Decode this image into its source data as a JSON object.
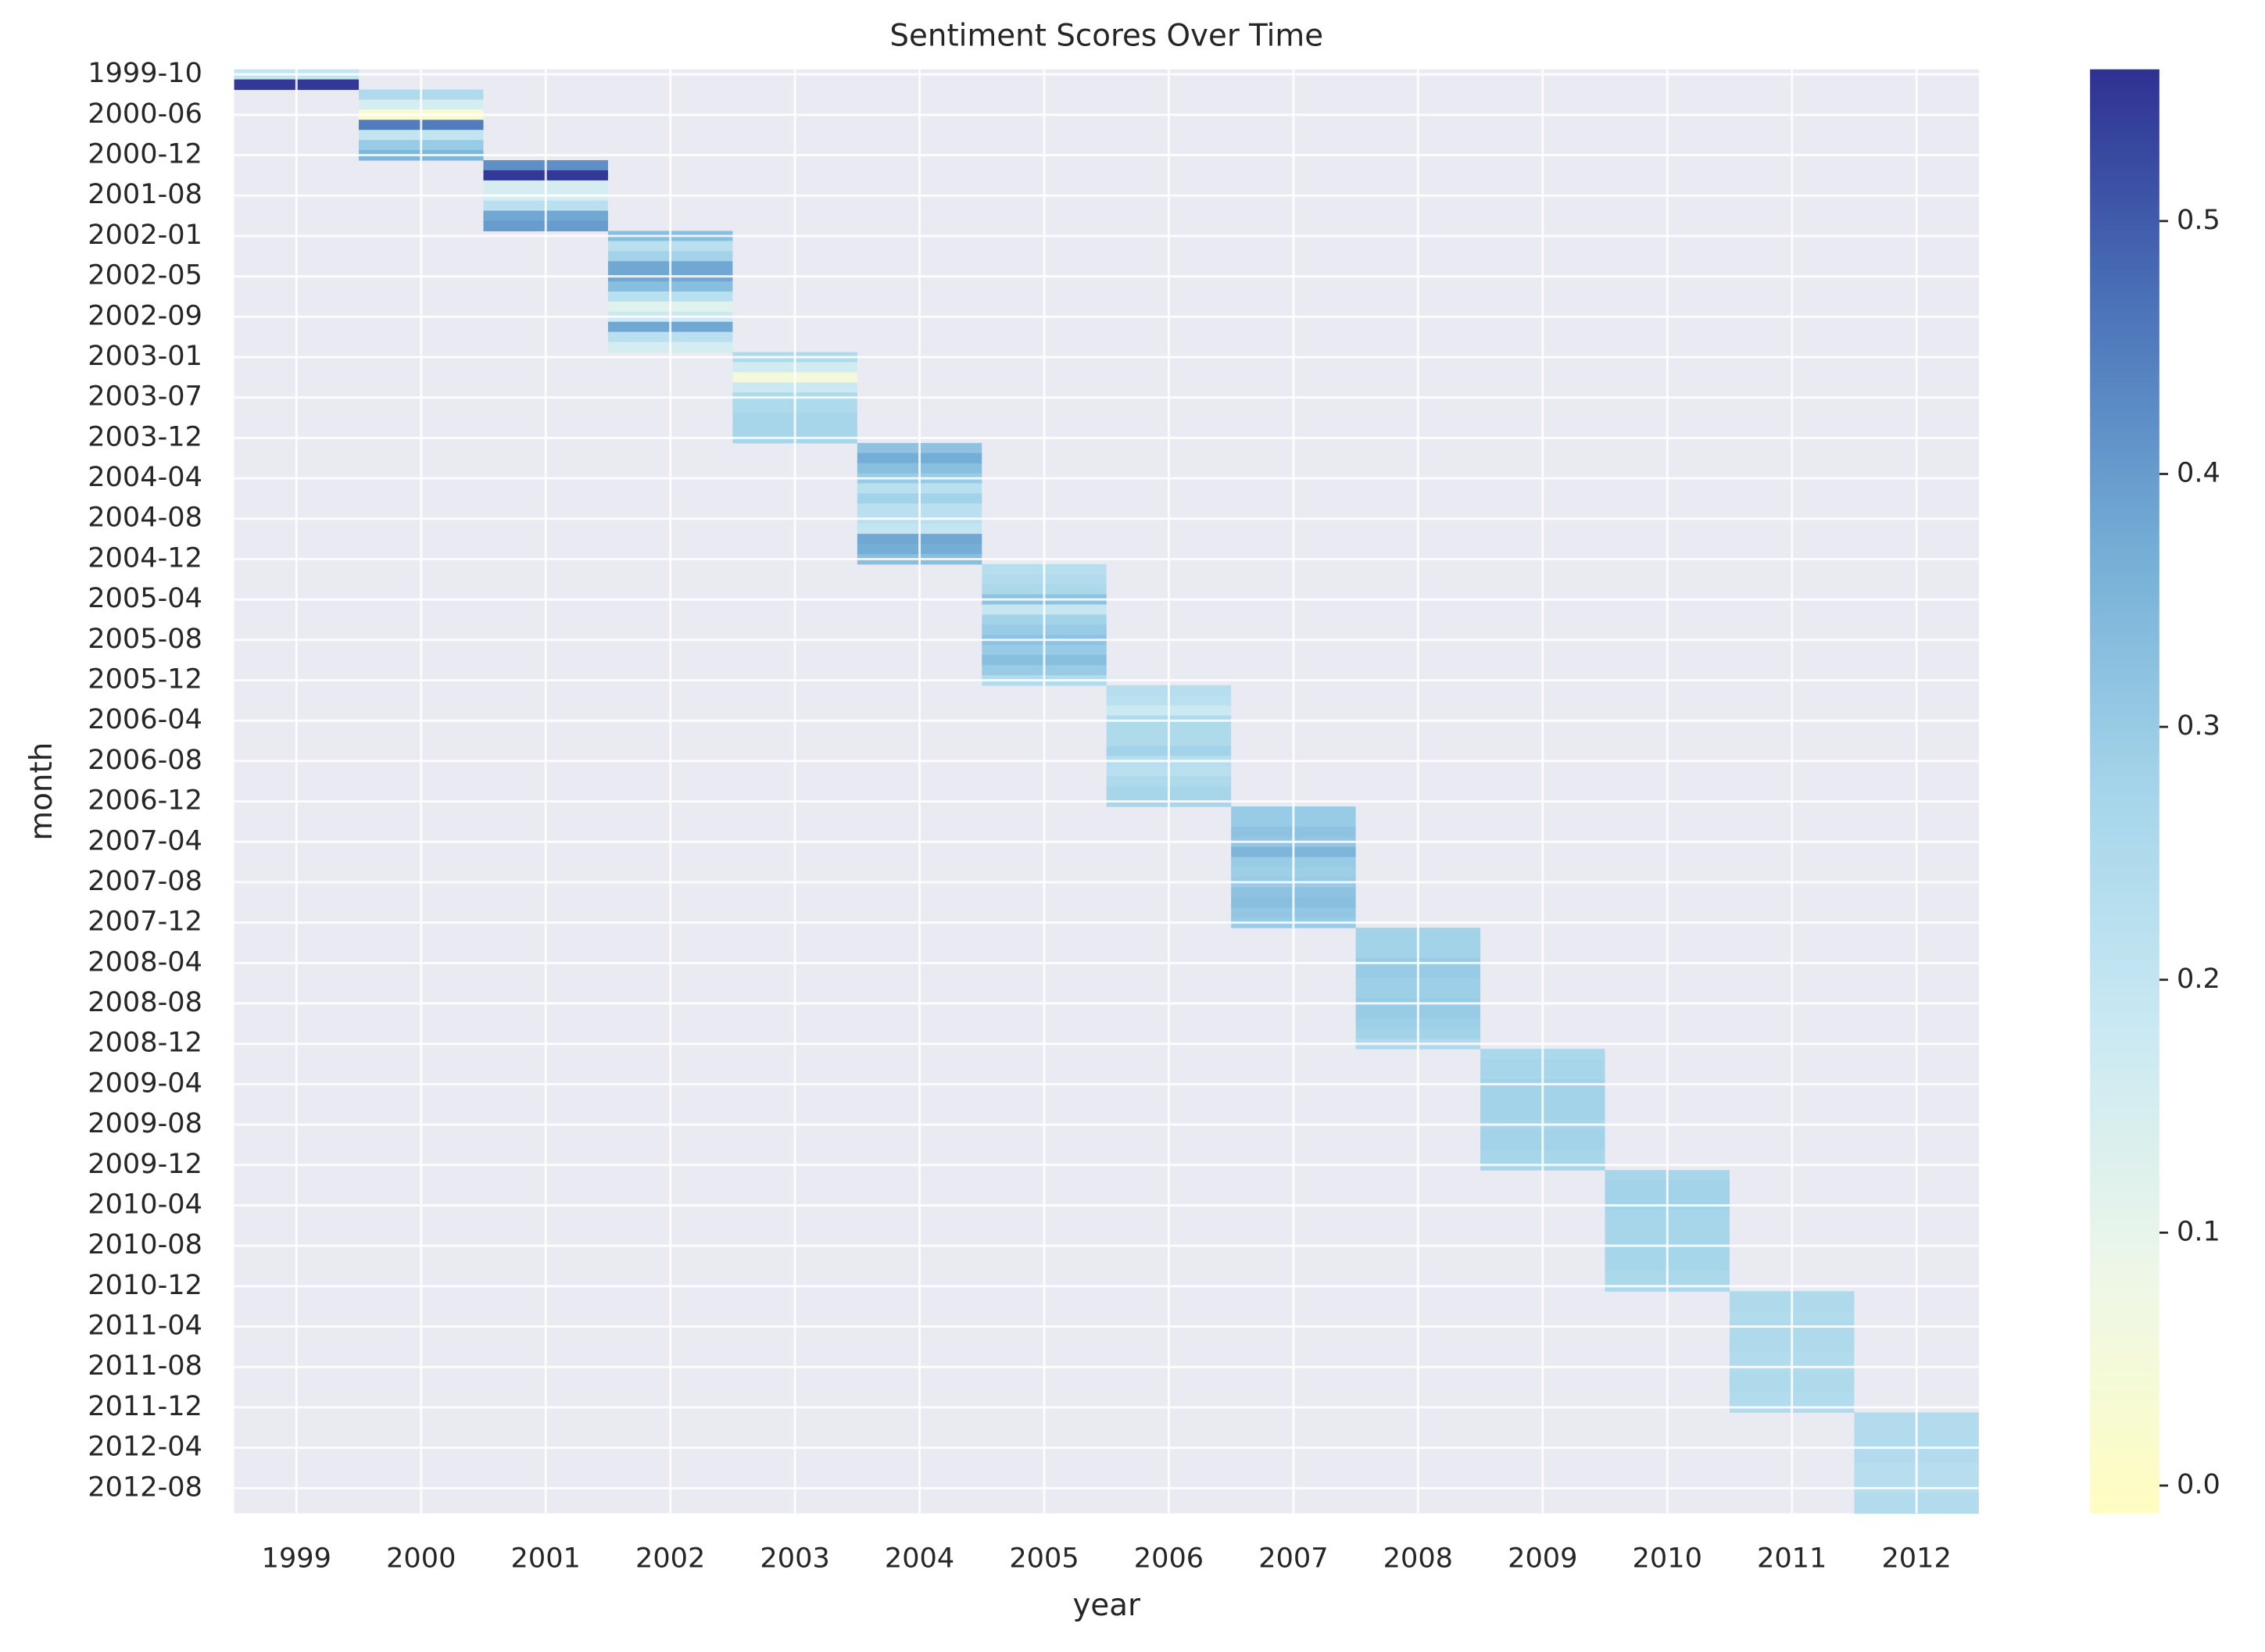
{
  "chart_data": {
    "type": "heatmap",
    "title": "Sentiment Scores Over Time",
    "x_label": "year",
    "y_label": "month",
    "x": [
      "1999",
      "2000",
      "2001",
      "2002",
      "2003",
      "2004",
      "2005",
      "2006",
      "2007",
      "2008",
      "2009",
      "2010",
      "2011",
      "2012"
    ],
    "y": [
      "1999-10",
      null,
      null,
      null,
      "2000-06",
      null,
      null,
      null,
      "2000-12",
      null,
      null,
      null,
      "2001-08",
      null,
      null,
      null,
      "2002-01",
      null,
      null,
      null,
      "2002-05",
      null,
      null,
      null,
      "2002-09",
      null,
      null,
      null,
      "2003-01",
      null,
      null,
      null,
      "2003-07",
      null,
      null,
      null,
      "2003-12",
      null,
      null,
      null,
      "2004-04",
      null,
      null,
      null,
      "2004-08",
      null,
      null,
      null,
      "2004-12",
      null,
      null,
      null,
      "2005-04",
      null,
      null,
      null,
      "2005-08",
      null,
      null,
      null,
      "2005-12",
      null,
      null,
      null,
      "2006-04",
      null,
      null,
      null,
      "2006-08",
      null,
      null,
      null,
      "2006-12",
      null,
      null,
      null,
      "2007-04",
      null,
      null,
      null,
      "2007-08",
      null,
      null,
      null,
      "2007-12",
      null,
      null,
      null,
      "2008-04",
      null,
      null,
      null,
      "2008-08",
      null,
      null,
      null,
      "2008-12",
      null,
      null,
      null,
      "2009-04",
      null,
      null,
      null,
      "2009-08",
      null,
      null,
      null,
      "2009-12",
      null,
      null,
      null,
      "2010-04",
      null,
      null,
      null,
      "2010-08",
      null,
      null,
      null,
      "2010-12",
      null,
      null,
      null,
      "2011-04",
      null,
      null,
      null,
      "2011-08",
      null,
      null,
      null,
      "2011-12",
      null,
      null,
      null,
      "2012-04",
      null,
      null,
      null,
      "2012-08",
      null,
      null
    ],
    "values": [
      [
        0.2,
        0.55
      ],
      [
        0.25,
        0.15,
        0.02,
        0.45,
        0.2,
        0.3,
        0.35
      ],
      [
        0.42,
        0.55,
        0.15,
        0.15,
        0.22,
        0.38,
        0.4
      ],
      [
        0.33,
        0.22,
        0.28,
        0.38,
        0.38,
        0.33,
        0.22,
        0.12,
        0.18,
        0.38,
        0.22,
        0.15
      ],
      [
        0.25,
        0.16,
        0.05,
        0.18,
        0.25,
        0.25,
        0.27,
        0.27,
        0.27
      ],
      [
        0.32,
        0.37,
        0.33,
        0.3,
        0.22,
        0.28,
        0.22,
        0.22,
        0.2,
        0.38,
        0.37,
        0.33
      ],
      [
        0.23,
        0.24,
        0.26,
        0.32,
        0.19,
        0.28,
        0.3,
        0.32,
        0.3,
        0.33,
        0.3,
        0.24
      ],
      [
        0.23,
        0.22,
        0.18,
        0.25,
        0.25,
        0.25,
        0.28,
        0.23,
        0.22,
        0.25,
        0.27,
        0.27
      ],
      [
        0.3,
        0.3,
        0.32,
        0.31,
        0.35,
        0.3,
        0.29,
        0.3,
        0.32,
        0.33,
        0.31,
        0.3
      ],
      [
        0.28,
        0.28,
        0.28,
        0.3,
        0.3,
        0.29,
        0.29,
        0.3,
        0.3,
        0.29,
        0.28,
        0.25
      ],
      [
        0.26,
        0.27,
        0.27,
        0.28,
        0.28,
        0.28,
        0.28,
        0.27,
        0.28,
        0.28,
        0.27,
        0.27
      ],
      [
        0.27,
        0.28,
        0.28,
        0.28,
        0.27,
        0.27,
        0.27,
        0.27,
        0.27,
        0.27,
        0.26,
        0.26
      ],
      [
        0.25,
        0.25,
        0.24,
        0.25,
        0.25,
        0.25,
        0.24,
        0.24,
        0.25,
        0.25,
        0.24,
        0.24
      ],
      [
        0.24,
        0.24,
        0.24,
        0.24,
        0.24,
        0.23,
        0.23,
        0.23,
        0.24,
        0.24
      ]
    ],
    "clim": [
      -0.011,
      0.56
    ],
    "cticks": [
      {
        "value": 0,
        "label": "0.0"
      },
      0.1,
      0.2,
      0.3,
      0.4,
      0.5
    ],
    "colormap": [
      "#fffdc0",
      "#edf7e8",
      "#cae9f3",
      "#a5d5ea",
      "#74aed6",
      "#4b74b9",
      "#2e3192"
    ],
    "grid": true
  }
}
